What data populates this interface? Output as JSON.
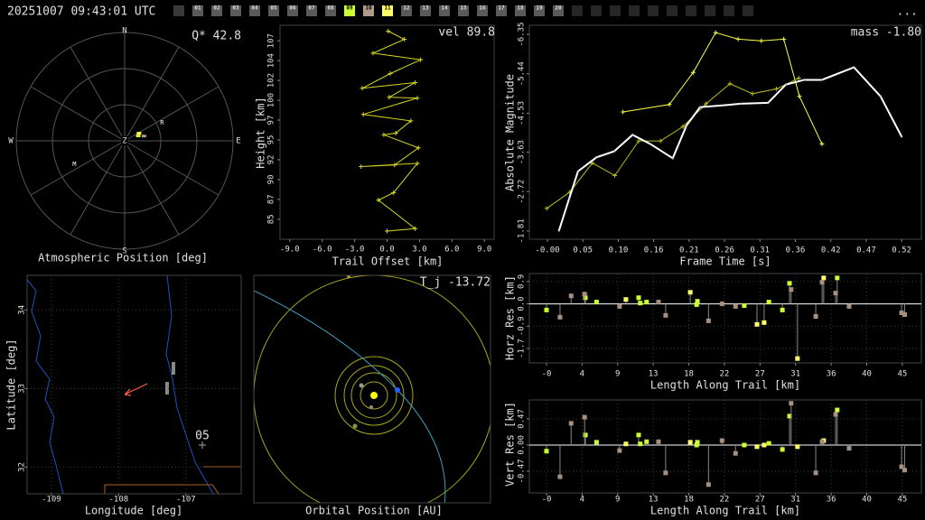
{
  "header": {
    "timestamp": "20251007 09:43:01 UTC",
    "menu": "...",
    "frames": [
      {
        "label": "01",
        "color": "#5a5a5a"
      },
      {
        "label": "02",
        "color": "#5a5a5a"
      },
      {
        "label": "03",
        "color": "#5a5a5a"
      },
      {
        "label": "04",
        "color": "#5a5a5a"
      },
      {
        "label": "05",
        "color": "#5a5a5a"
      },
      {
        "label": "06",
        "color": "#5a5a5a"
      },
      {
        "label": "07",
        "color": "#5a5a5a"
      },
      {
        "label": "08",
        "color": "#5a5a5a"
      },
      {
        "label": "09",
        "color": "#ccff33"
      },
      {
        "label": "10",
        "color": "#b09a8a"
      },
      {
        "label": "11",
        "color": "#ffff66"
      },
      {
        "label": "12",
        "color": "#5a5a5a"
      },
      {
        "label": "13",
        "color": "#5a5a5a"
      },
      {
        "label": "14",
        "color": "#5a5a5a"
      },
      {
        "label": "15",
        "color": "#5a5a5a"
      },
      {
        "label": "16",
        "color": "#5a5a5a"
      },
      {
        "label": "17",
        "color": "#5a5a5a"
      },
      {
        "label": "18",
        "color": "#5a5a5a"
      },
      {
        "label": "19",
        "color": "#5a5a5a"
      },
      {
        "label": "20",
        "color": "#5a5a5a"
      }
    ]
  },
  "chart_data": [
    {
      "type": "polar",
      "xlabel": "Atmospheric Position [deg]",
      "annotation": "Q* 42.8",
      "directions": [
        "N",
        "E",
        "S",
        "W"
      ],
      "center_label": "Z",
      "rlim": [
        90,
        0
      ],
      "points": [
        {
          "az": 62,
          "el": 13.5,
          "color": "#ffff44"
        },
        {
          "az": 70,
          "el": 12,
          "color": "#ccff33"
        },
        {
          "az": 76,
          "el": 16.5,
          "color": "#c09080"
        }
      ],
      "markers": [
        {
          "label": "R",
          "az": 64,
          "el": 34.5
        },
        {
          "label": "M",
          "az": 245,
          "el": 46
        }
      ]
    },
    {
      "type": "line",
      "xlabel": "Trail Offset [km]",
      "ylabel": "Height [km]",
      "annotation": "vel 89.8",
      "xlim": [
        -9.9,
        9.9
      ],
      "ylim": [
        82.5,
        108.72
      ],
      "xticks": [
        {
          "value": -9,
          "label": "-9.0"
        },
        {
          "value": -6,
          "label": "-6.0"
        },
        {
          "value": -3,
          "label": "-3.0"
        },
        {
          "value": 0,
          "label": "0.0"
        },
        {
          "value": 3,
          "label": "3.0"
        },
        {
          "value": 6,
          "label": "6.0"
        },
        {
          "value": 9,
          "label": "9.0"
        }
      ],
      "yticks": [
        {
          "value": 84.95,
          "label": "85"
        },
        {
          "value": 87.38,
          "label": "87"
        },
        {
          "value": 89.81,
          "label": "90"
        },
        {
          "value": 92.24,
          "label": "92"
        },
        {
          "value": 94.67,
          "label": "95"
        },
        {
          "value": 97.1,
          "label": "97"
        },
        {
          "value": 99.53,
          "label": "100"
        },
        {
          "value": 101.96,
          "label": "102"
        },
        {
          "value": 104.39,
          "label": "104"
        },
        {
          "value": 106.82,
          "label": "107"
        }
      ],
      "grid": false,
      "series": [
        {
          "color": "#d8d820",
          "marker": "+",
          "x": [
            0.1,
            1.6,
            -1.3,
            3.1,
            0.3,
            -2.3,
            2.6,
            0.2,
            2.8,
            -2.2,
            2.2,
            0.8,
            -0.3,
            2.9,
            0.7,
            -2.4,
            2.8,
            0.6,
            -0.8,
            2.6,
            0.0
          ],
          "values": [
            108.0,
            107.0,
            105.3,
            104.5,
            102.8,
            101.0,
            101.7,
            99.9,
            99.8,
            97.8,
            97.0,
            95.5,
            95.3,
            93.7,
            91.6,
            91.4,
            91.8,
            88.2,
            87.3,
            83.8,
            83.5
          ]
        }
      ]
    },
    {
      "type": "line",
      "xlabel": "Frame Time [s]",
      "ylabel": "Absolute Magnitude",
      "annotation": "mass -1.80",
      "xlim": [
        -0.0265,
        0.549
      ],
      "ylim": [
        -1.62,
        -6.56
      ],
      "xticks": [
        {
          "value": 0,
          "label": "-0.00"
        },
        {
          "value": 0.052,
          "label": "0.05"
        },
        {
          "value": 0.104,
          "label": "0.10"
        },
        {
          "value": 0.156,
          "label": "0.16"
        },
        {
          "value": 0.208,
          "label": "0.21"
        },
        0.26,
        {
          "value": 0.312,
          "label": "0.31"
        },
        {
          "value": 0.364,
          "label": "0.36"
        },
        {
          "value": 0.416,
          "label": "0.42"
        },
        {
          "value": 0.468,
          "label": "0.47"
        },
        0.52
      ],
      "yticks": [
        -6.35,
        -5.44,
        -4.53,
        -3.63,
        -2.72,
        -1.81
      ],
      "grid": false,
      "series": [
        {
          "color": "#ffff44",
          "marker": "+",
          "x": [
            0.111,
            0.179,
            0.214,
            0.247,
            0.28,
            0.314,
            0.347,
            0.37,
            0.403
          ],
          "values": [
            -4.56,
            -4.73,
            -5.47,
            -6.39,
            -6.24,
            -6.2,
            -6.24,
            -4.92,
            -3.82
          ]
        },
        {
          "color": "#b8b820",
          "marker": "+",
          "x": [
            -0.001,
            0.033,
            0.066,
            0.099,
            0.134,
            0.166,
            0.199,
            0.233,
            0.268,
            0.301,
            0.336,
            0.369
          ],
          "values": [
            -2.33,
            -2.71,
            -3.38,
            -3.09,
            -3.89,
            -3.89,
            -4.22,
            -4.75,
            -5.21,
            -4.98,
            -5.09,
            -5.34
          ]
        },
        {
          "color": "#ffffff",
          "marker": "dot",
          "x": [
            0.017,
            0.032,
            0.045,
            0.072,
            0.098,
            0.125,
            0.151,
            0.184,
            0.204,
            0.224,
            0.257,
            0.284,
            0.324,
            0.35,
            0.377,
            0.403,
            0.45,
            0.489,
            0.52
          ],
          "values": [
            -1.82,
            -2.56,
            -3.19,
            -3.51,
            -3.65,
            -4.03,
            -3.82,
            -3.49,
            -4.24,
            -4.67,
            -4.71,
            -4.75,
            -4.77,
            -5.19,
            -5.3,
            -5.3,
            -5.59,
            -4.92,
            -3.99
          ]
        }
      ]
    },
    {
      "type": "stem",
      "xlabel": "Length Along Trail [km]",
      "ylabel": "Horz Res [km]",
      "xlim": [
        -2.16,
        47.2
      ],
      "ylim": [
        -2.3,
        1.18
      ],
      "xticks": [
        {
          "value": 0,
          "label": "-0"
        },
        {
          "value": 4.48,
          "label": "4"
        },
        {
          "value": 8.96,
          "label": "9"
        },
        {
          "value": 13.44,
          "label": "13"
        },
        {
          "value": 17.92,
          "label": "18"
        },
        {
          "value": 22.4,
          "label": "22"
        },
        {
          "value": 26.88,
          "label": "27"
        },
        {
          "value": 31.36,
          "label": "31"
        },
        {
          "value": 35.84,
          "label": "36"
        },
        {
          "value": 40.32,
          "label": "40"
        },
        {
          "value": 44.8,
          "label": "45"
        }
      ],
      "yticks": [
        {
          "value": 0.87,
          "label": "0.9"
        },
        {
          "value": 0,
          "label": "0.0"
        },
        {
          "value": -0.87,
          "label": "-0.9"
        },
        {
          "value": -1.74,
          "label": "-1.7"
        }
      ],
      "grid": true,
      "series": [
        {
          "color": "#ccff33",
          "x": [
            0.0,
            4.9,
            6.3,
            11.6,
            11.8,
            12.6,
            18.9,
            19.0,
            24.9,
            28.0,
            29.7,
            30.6,
            36.6
          ],
          "values": [
            -0.24,
            0.24,
            0.07,
            0.24,
            0.03,
            0.07,
            -0.03,
            0.1,
            -0.07,
            0.07,
            -0.24,
            0.8,
            1.01
          ]
        },
        {
          "color": "#ffff66",
          "x": [
            10.0,
            18.1,
            26.5,
            27.4,
            31.6,
            34.9
          ],
          "values": [
            0.17,
            0.45,
            -0.8,
            -0.73,
            -2.13,
            1.01
          ]
        },
        {
          "color": "#a89080",
          "x": [
            1.7,
            3.1,
            4.8,
            9.2,
            14.1,
            15.0,
            20.4,
            22.1,
            23.8,
            30.8,
            33.9,
            34.7,
            36.4,
            38.1,
            44.7,
            45.1
          ],
          "values": [
            -0.52,
            0.31,
            0.38,
            -0.1,
            0.07,
            -0.45,
            -0.66,
            0.0,
            -0.1,
            0.56,
            -0.49,
            0.84,
            0.42,
            -0.1,
            -0.35,
            -0.42
          ]
        }
      ]
    },
    {
      "type": "stem",
      "xlabel": "Length Along Trail [km]",
      "ylabel": "Vert Res [km]",
      "xlim": [
        -2.16,
        47.2
      ],
      "ylim": [
        -0.86,
        0.81
      ],
      "xticks": [
        {
          "value": 0,
          "label": "-0"
        },
        {
          "value": 4.48,
          "label": "4"
        },
        {
          "value": 8.96,
          "label": "9"
        },
        {
          "value": 13.44,
          "label": "13"
        },
        {
          "value": 17.92,
          "label": "18"
        },
        {
          "value": 22.4,
          "label": "22"
        },
        {
          "value": 26.88,
          "label": "27"
        },
        {
          "value": 31.36,
          "label": "31"
        },
        {
          "value": 35.84,
          "label": "36"
        },
        {
          "value": 40.32,
          "label": "40"
        },
        {
          "value": 44.8,
          "label": "45"
        }
      ],
      "yticks": [
        0.47,
        {
          "value": 0,
          "label": "0.00"
        },
        -0.47
      ],
      "grid": true,
      "series": [
        {
          "color": "#ccff33",
          "x": [
            0.0,
            4.9,
            6.3,
            11.6,
            11.8,
            12.6,
            18.9,
            19.0,
            24.9,
            28.0,
            29.7,
            30.6,
            36.6
          ],
          "values": [
            -0.11,
            0.18,
            0.05,
            0.18,
            0.02,
            0.06,
            0.0,
            0.05,
            0.0,
            0.03,
            -0.08,
            0.52,
            0.63
          ]
        },
        {
          "color": "#ffff66",
          "x": [
            10.0,
            18.1,
            26.5,
            27.4,
            31.6,
            34.9
          ],
          "values": [
            0.02,
            0.05,
            -0.03,
            0.0,
            -0.03,
            0.08
          ]
        },
        {
          "color": "#a89080",
          "x": [
            1.7,
            3.1,
            4.8,
            9.2,
            14.1,
            15.0,
            20.4,
            22.1,
            23.8,
            30.8,
            33.9,
            34.7,
            36.4,
            38.1,
            44.7,
            45.1
          ],
          "values": [
            -0.57,
            0.39,
            0.5,
            -0.1,
            0.06,
            -0.5,
            -0.71,
            0.08,
            -0.15,
            0.75,
            -0.5,
            0.06,
            0.55,
            -0.06,
            -0.39,
            -0.45
          ]
        }
      ]
    },
    {
      "type": "map",
      "xlabel": "Longitude [deg]",
      "ylabel": "Latitude [deg]",
      "annotation": "05",
      "xlim": [
        -109.36,
        -106.18
      ],
      "ylim": [
        31.66,
        34.44
      ],
      "xticks": [
        -109,
        -108,
        -107
      ],
      "yticks": [
        32,
        33,
        34
      ],
      "grid": true
    },
    {
      "type": "orbit",
      "xlabel": "Orbital Position [AU]",
      "annotation": "T_j -13.72"
    }
  ]
}
